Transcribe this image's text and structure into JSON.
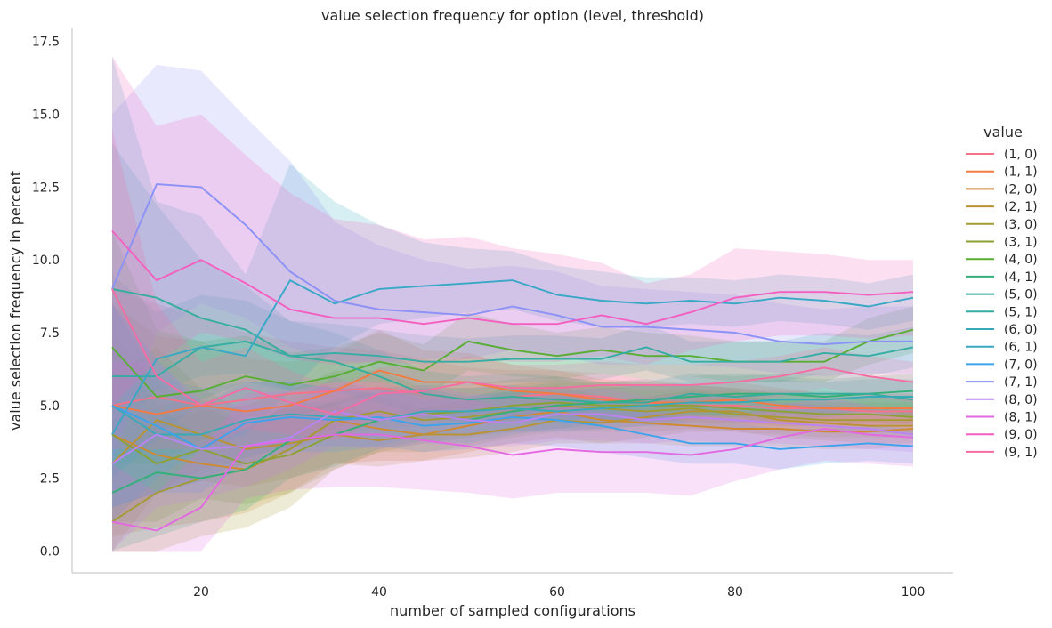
{
  "chart_data": {
    "type": "line",
    "title": "value selection frequency for option (level, threshold)",
    "xlabel": "number of sampled configurations",
    "ylabel": "value selection frequency in percent",
    "xlim": [
      5.5,
      104.5
    ],
    "ylim": [
      -0.75,
      17.95
    ],
    "xticks": [
      20,
      40,
      60,
      80,
      100
    ],
    "xtick_labels": [
      "20",
      "40",
      "60",
      "80",
      "100"
    ],
    "yticks": [
      0.0,
      2.5,
      5.0,
      7.5,
      10.0,
      12.5,
      15.0,
      17.5
    ],
    "ytick_labels": [
      "0.0",
      "2.5",
      "5.0",
      "7.5",
      "10.0",
      "12.5",
      "15.0",
      "17.5"
    ],
    "grid": false,
    "legend": {
      "title": "value",
      "placement": "right"
    },
    "x": [
      10,
      15,
      20,
      25,
      30,
      35,
      40,
      45,
      50,
      55,
      60,
      65,
      70,
      75,
      80,
      85,
      90,
      95,
      100
    ],
    "series": [
      {
        "name": "(1, 0)",
        "color": "#f77189",
        "values": [
          5.0,
          5.3,
          5.0,
          5.2,
          5.4,
          5.5,
          5.6,
          5.4,
          5.2,
          5.3,
          5.4,
          5.3,
          5.1,
          5.0,
          5.0,
          4.9,
          4.9,
          4.8,
          4.8
        ],
        "lower": [
          1.0,
          2.0,
          2.5,
          3.0,
          3.5,
          4.0,
          4.2,
          4.3,
          4.4,
          4.4,
          4.5,
          4.5,
          4.5,
          4.4,
          4.4,
          4.3,
          4.3,
          4.3,
          4.3
        ],
        "upper": [
          9.0,
          8.5,
          8.0,
          7.5,
          7.2,
          7.0,
          6.9,
          6.6,
          6.3,
          6.2,
          6.2,
          6.1,
          5.9,
          5.7,
          5.6,
          5.5,
          5.5,
          5.4,
          5.3
        ]
      },
      {
        "name": "(1, 1)",
        "color": "#f57a3f",
        "values": [
          5.0,
          4.7,
          5.0,
          4.8,
          5.0,
          5.5,
          6.2,
          5.8,
          5.8,
          5.5,
          5.4,
          5.2,
          5.1,
          5.1,
          5.2,
          5.0,
          4.9,
          4.9,
          4.9
        ],
        "lower": [
          1.5,
          2.0,
          2.8,
          3.2,
          3.6,
          4.2,
          4.8,
          4.7,
          4.8,
          4.6,
          4.6,
          4.5,
          4.4,
          4.5,
          4.6,
          4.4,
          4.4,
          4.4,
          4.4
        ],
        "upper": [
          8.5,
          7.4,
          7.2,
          6.6,
          6.5,
          6.8,
          7.6,
          6.9,
          6.8,
          6.4,
          6.2,
          5.9,
          5.8,
          5.7,
          5.8,
          5.6,
          5.4,
          5.4,
          5.4
        ]
      },
      {
        "name": "(2, 0)",
        "color": "#cf8a31",
        "values": [
          4.0,
          3.3,
          3.0,
          2.8,
          3.5,
          4.5,
          4.2,
          4.0,
          4.3,
          4.6,
          4.8,
          4.5,
          4.4,
          4.3,
          4.2,
          4.2,
          4.1,
          4.1,
          4.2
        ],
        "lower": [
          0.5,
          0.8,
          1.0,
          1.3,
          2.0,
          3.0,
          3.1,
          3.1,
          3.4,
          3.7,
          3.9,
          3.7,
          3.7,
          3.6,
          3.6,
          3.6,
          3.5,
          3.5,
          3.6
        ],
        "upper": [
          7.5,
          5.8,
          5.0,
          4.3,
          5.0,
          6.0,
          5.3,
          4.9,
          5.2,
          5.5,
          5.7,
          5.3,
          5.1,
          5.0,
          4.8,
          4.8,
          4.7,
          4.7,
          4.8
        ]
      },
      {
        "name": "(2, 1)",
        "color": "#b99332",
        "values": [
          3.0,
          4.5,
          4.0,
          3.5,
          3.7,
          4.0,
          3.8,
          4.0,
          4.0,
          4.2,
          4.5,
          4.4,
          4.6,
          4.8,
          4.8,
          4.5,
          4.4,
          4.3,
          4.3
        ],
        "lower": [
          0.0,
          2.0,
          2.4,
          2.2,
          2.5,
          3.0,
          2.9,
          3.1,
          3.2,
          3.4,
          3.7,
          3.7,
          3.9,
          4.1,
          4.1,
          3.9,
          3.8,
          3.7,
          3.7
        ],
        "upper": [
          6.0,
          7.0,
          5.6,
          4.8,
          4.9,
          5.0,
          4.7,
          4.9,
          4.8,
          5.0,
          5.3,
          5.1,
          5.3,
          5.5,
          5.5,
          5.1,
          5.0,
          4.9,
          4.9
        ]
      },
      {
        "name": "(3, 0)",
        "color": "#a39b32",
        "values": [
          1.0,
          2.0,
          2.5,
          2.8,
          3.5,
          4.5,
          4.8,
          4.5,
          4.6,
          4.8,
          5.0,
          4.9,
          4.8,
          4.9,
          4.7,
          4.6,
          4.5,
          4.5,
          4.5
        ],
        "lower": [
          0.0,
          0.0,
          0.5,
          0.8,
          1.5,
          2.8,
          3.4,
          3.4,
          3.6,
          3.9,
          4.1,
          4.1,
          4.1,
          4.2,
          4.1,
          4.0,
          3.9,
          3.9,
          3.9
        ],
        "upper": [
          3.0,
          4.5,
          4.8,
          5.0,
          5.5,
          6.2,
          6.2,
          5.6,
          5.6,
          5.7,
          5.9,
          5.7,
          5.5,
          5.6,
          5.3,
          5.2,
          5.1,
          5.1,
          5.1
        ]
      },
      {
        "name": "(3, 1)",
        "color": "#8ba233",
        "values": [
          4.0,
          3.0,
          3.5,
          3.0,
          3.3,
          4.0,
          4.5,
          4.7,
          4.8,
          5.0,
          5.1,
          5.0,
          5.0,
          5.0,
          4.9,
          4.8,
          4.7,
          4.7,
          4.6
        ],
        "lower": [
          1.0,
          1.0,
          1.8,
          1.6,
          2.0,
          2.8,
          3.4,
          3.7,
          3.9,
          4.1,
          4.2,
          4.2,
          4.3,
          4.3,
          4.2,
          4.2,
          4.1,
          4.1,
          4.0
        ],
        "upper": [
          7.0,
          5.0,
          5.2,
          4.4,
          4.6,
          5.2,
          5.6,
          5.7,
          5.7,
          5.9,
          6.0,
          5.8,
          5.7,
          5.7,
          5.6,
          5.4,
          5.3,
          5.3,
          5.2
        ]
      },
      {
        "name": "(4, 0)",
        "color": "#58ad33",
        "values": [
          7.0,
          5.3,
          5.5,
          6.0,
          5.7,
          6.0,
          6.5,
          6.2,
          7.2,
          6.9,
          6.7,
          6.9,
          6.7,
          6.7,
          6.5,
          6.5,
          6.5,
          7.2,
          7.6
        ],
        "lower": [
          3.0,
          3.0,
          3.8,
          4.6,
          4.6,
          5.0,
          5.5,
          5.3,
          6.2,
          6.0,
          5.9,
          6.1,
          5.9,
          6.0,
          5.8,
          5.8,
          5.8,
          6.4,
          6.8
        ],
        "upper": [
          11.0,
          7.6,
          7.2,
          7.4,
          6.8,
          7.0,
          7.5,
          7.1,
          8.2,
          7.8,
          7.5,
          7.7,
          7.5,
          7.4,
          7.2,
          7.2,
          7.2,
          8.0,
          8.4
        ]
      },
      {
        "name": "(4, 1)",
        "color": "#33b07a",
        "values": [
          2.0,
          2.7,
          2.5,
          2.8,
          3.8,
          4.0,
          4.5,
          4.7,
          4.5,
          4.8,
          5.0,
          5.1,
          5.2,
          5.3,
          5.4,
          5.4,
          5.3,
          5.4,
          5.5
        ],
        "lower": [
          0.0,
          0.5,
          1.0,
          1.4,
          2.5,
          2.9,
          3.5,
          3.8,
          3.7,
          4.0,
          4.2,
          4.4,
          4.5,
          4.6,
          4.7,
          4.8,
          4.7,
          4.8,
          4.9
        ],
        "upper": [
          4.5,
          4.9,
          4.0,
          4.2,
          5.1,
          5.1,
          5.5,
          5.6,
          5.3,
          5.6,
          5.8,
          5.8,
          5.9,
          6.0,
          6.1,
          6.0,
          5.9,
          6.0,
          6.1
        ]
      },
      {
        "name": "(5, 0)",
        "color": "#35ad9c",
        "values": [
          9.0,
          8.7,
          8.0,
          7.6,
          6.7,
          6.5,
          6.0,
          5.4,
          5.2,
          5.3,
          5.2,
          5.1,
          5.1,
          5.4,
          5.3,
          5.4,
          5.4,
          5.4,
          5.2
        ],
        "lower": [
          4.0,
          5.5,
          6.0,
          6.1,
          5.5,
          5.5,
          5.1,
          4.6,
          4.4,
          4.5,
          4.4,
          4.4,
          4.4,
          4.7,
          4.6,
          4.7,
          4.7,
          4.8,
          4.6
        ],
        "upper": [
          14.0,
          11.9,
          10.0,
          9.1,
          7.9,
          7.5,
          6.9,
          6.2,
          6.0,
          6.1,
          6.0,
          5.8,
          5.8,
          6.1,
          6.0,
          6.1,
          6.1,
          6.0,
          5.8
        ]
      },
      {
        "name": "(5, 1)",
        "color": "#36ada4",
        "values": [
          6.0,
          6.0,
          7.0,
          7.2,
          6.7,
          6.8,
          6.7,
          6.5,
          6.5,
          6.6,
          6.6,
          6.6,
          7.0,
          6.5,
          6.5,
          6.5,
          6.8,
          6.7,
          7.0
        ],
        "lower": [
          2.5,
          3.8,
          5.2,
          5.8,
          5.5,
          5.8,
          5.8,
          5.6,
          5.7,
          5.8,
          5.8,
          5.9,
          6.2,
          5.8,
          5.8,
          5.8,
          6.1,
          6.0,
          6.3
        ],
        "upper": [
          9.5,
          8.2,
          8.8,
          8.6,
          7.9,
          7.8,
          7.6,
          7.4,
          7.3,
          7.4,
          7.4,
          7.3,
          7.8,
          7.2,
          7.2,
          7.2,
          7.5,
          7.4,
          7.7
        ]
      },
      {
        "name": "(6, 0)",
        "color": "#37aab7",
        "values": [
          5.0,
          4.0,
          4.0,
          4.5,
          4.7,
          4.6,
          4.5,
          4.8,
          4.8,
          4.9,
          4.8,
          4.9,
          5.0,
          5.1,
          5.1,
          5.2,
          5.2,
          5.3,
          5.3
        ],
        "lower": [
          1.5,
          2.0,
          2.4,
          3.2,
          3.6,
          3.6,
          3.6,
          4.0,
          4.0,
          4.1,
          4.1,
          4.2,
          4.3,
          4.4,
          4.4,
          4.5,
          4.6,
          4.7,
          4.7
        ],
        "upper": [
          8.5,
          6.0,
          5.6,
          5.8,
          5.8,
          5.6,
          5.4,
          5.6,
          5.6,
          5.7,
          5.5,
          5.6,
          5.7,
          5.8,
          5.8,
          5.9,
          5.8,
          5.9,
          5.9
        ]
      },
      {
        "name": "(6, 1)",
        "color": "#38a8c5",
        "values": [
          4.0,
          6.6,
          7.0,
          6.7,
          9.3,
          8.5,
          9.0,
          9.1,
          9.2,
          9.3,
          8.8,
          8.6,
          8.5,
          8.6,
          8.5,
          8.7,
          8.6,
          8.4,
          8.7
        ],
        "lower": [
          1.0,
          2.5,
          3.5,
          4.0,
          5.5,
          7.0,
          7.8,
          8.0,
          8.2,
          8.3,
          7.9,
          7.7,
          7.7,
          7.8,
          7.7,
          7.9,
          7.8,
          7.6,
          7.9
        ],
        "upper": [
          17.0,
          12.0,
          11.5,
          9.5,
          13.3,
          12.0,
          11.2,
          10.6,
          10.4,
          10.3,
          9.8,
          9.6,
          9.4,
          9.4,
          9.3,
          9.5,
          9.4,
          9.2,
          9.5
        ]
      },
      {
        "name": "(7, 0)",
        "color": "#3ba3ec",
        "values": [
          5.0,
          4.3,
          3.5,
          4.4,
          4.6,
          4.5,
          4.6,
          4.3,
          4.4,
          4.6,
          4.5,
          4.3,
          4.0,
          3.7,
          3.7,
          3.5,
          3.6,
          3.7,
          3.6
        ],
        "lower": [
          1.5,
          2.0,
          2.0,
          3.0,
          3.4,
          3.4,
          3.6,
          3.4,
          3.5,
          3.7,
          3.6,
          3.4,
          3.2,
          3.0,
          3.0,
          2.8,
          3.0,
          3.1,
          3.0
        ],
        "upper": [
          8.5,
          6.6,
          5.0,
          5.8,
          5.8,
          5.6,
          5.6,
          5.2,
          5.3,
          5.5,
          5.4,
          5.2,
          4.8,
          4.4,
          4.4,
          4.2,
          4.2,
          4.3,
          4.2
        ]
      },
      {
        "name": "(7, 1)",
        "color": "#8b91f6",
        "values": [
          9.0,
          12.6,
          12.5,
          11.2,
          9.6,
          8.6,
          8.3,
          8.2,
          8.1,
          8.4,
          8.1,
          7.7,
          7.7,
          7.6,
          7.5,
          7.2,
          7.1,
          7.2,
          7.2
        ],
        "lower": [
          3.0,
          7.5,
          8.5,
          8.0,
          7.0,
          6.5,
          6.5,
          6.6,
          6.6,
          6.9,
          6.7,
          6.4,
          6.4,
          6.4,
          6.3,
          6.1,
          6.0,
          6.1,
          6.1
        ],
        "upper": [
          15.0,
          16.7,
          16.5,
          14.9,
          13.4,
          11.3,
          10.5,
          10.0,
          9.7,
          9.8,
          9.6,
          9.1,
          9.0,
          8.9,
          8.8,
          8.5,
          8.3,
          8.4,
          8.4
        ]
      },
      {
        "name": "(8, 0)",
        "color": "#bb83f4",
        "values": [
          3.0,
          4.0,
          3.5,
          3.6,
          3.9,
          4.8,
          4.5,
          4.7,
          4.5,
          4.4,
          4.7,
          4.7,
          4.5,
          4.6,
          4.5,
          4.4,
          4.3,
          4.2,
          4.0
        ],
        "lower": [
          0.0,
          1.5,
          1.8,
          2.2,
          2.8,
          3.6,
          3.5,
          3.7,
          3.6,
          3.6,
          3.8,
          3.8,
          3.7,
          3.8,
          3.7,
          3.7,
          3.6,
          3.5,
          3.4
        ],
        "upper": [
          6.5,
          6.5,
          5.2,
          5.0,
          5.0,
          6.0,
          5.5,
          5.7,
          5.4,
          5.3,
          5.6,
          5.6,
          5.3,
          5.4,
          5.3,
          5.1,
          5.0,
          4.9,
          4.6
        ]
      },
      {
        "name": "(8, 1)",
        "color": "#e368e2",
        "values": [
          1.0,
          0.7,
          1.5,
          3.6,
          3.8,
          4.0,
          4.0,
          3.8,
          3.6,
          3.3,
          3.5,
          3.4,
          3.4,
          3.3,
          3.5,
          3.9,
          4.2,
          4.0,
          3.9
        ],
        "lower": [
          0.0,
          0.0,
          0.0,
          1.8,
          2.1,
          2.2,
          2.2,
          2.1,
          2.0,
          1.8,
          2.0,
          2.0,
          2.0,
          1.9,
          2.4,
          2.8,
          3.1,
          3.0,
          2.9
        ],
        "upper": [
          3.0,
          2.0,
          3.5,
          5.4,
          5.5,
          5.8,
          5.8,
          5.5,
          5.2,
          4.9,
          5.0,
          4.8,
          4.8,
          4.7,
          4.6,
          5.0,
          5.3,
          5.0,
          4.9
        ]
      },
      {
        "name": "(9, 0)",
        "color": "#f45fbf",
        "values": [
          11.0,
          9.3,
          10.0,
          9.2,
          8.3,
          8.0,
          8.0,
          7.8,
          8.0,
          7.8,
          7.8,
          8.1,
          7.8,
          8.2,
          8.7,
          8.9,
          8.9,
          8.8,
          8.9
        ],
        "lower": [
          5.0,
          6.5,
          7.5,
          7.2,
          6.6,
          6.4,
          6.5,
          6.4,
          6.6,
          6.5,
          6.5,
          6.7,
          6.4,
          6.9,
          7.2,
          7.4,
          7.4,
          7.3,
          7.4
        ],
        "upper": [
          17.0,
          14.6,
          15.0,
          13.6,
          12.3,
          11.4,
          11.2,
          10.7,
          10.8,
          10.4,
          10.2,
          9.9,
          9.2,
          9.5,
          10.4,
          10.3,
          10.2,
          10.0,
          10.0
        ]
      },
      {
        "name": "(9, 1)",
        "color": "#f66ca3",
        "values": [
          9.0,
          6.0,
          5.0,
          5.6,
          5.1,
          4.7,
          5.4,
          5.5,
          5.8,
          5.6,
          5.6,
          5.7,
          5.7,
          5.7,
          5.8,
          6.0,
          6.3,
          6.0,
          5.8
        ],
        "lower": [
          3.5,
          3.5,
          3.5,
          4.2,
          4.0,
          3.8,
          4.5,
          4.6,
          4.9,
          4.8,
          4.8,
          4.9,
          5.0,
          5.0,
          5.1,
          5.3,
          5.6,
          5.3,
          5.1
        ],
        "upper": [
          14.5,
          8.5,
          6.5,
          7.0,
          6.2,
          5.6,
          6.3,
          6.4,
          6.7,
          6.4,
          6.4,
          6.5,
          6.4,
          6.4,
          6.5,
          6.7,
          7.0,
          6.7,
          6.5
        ]
      }
    ]
  }
}
